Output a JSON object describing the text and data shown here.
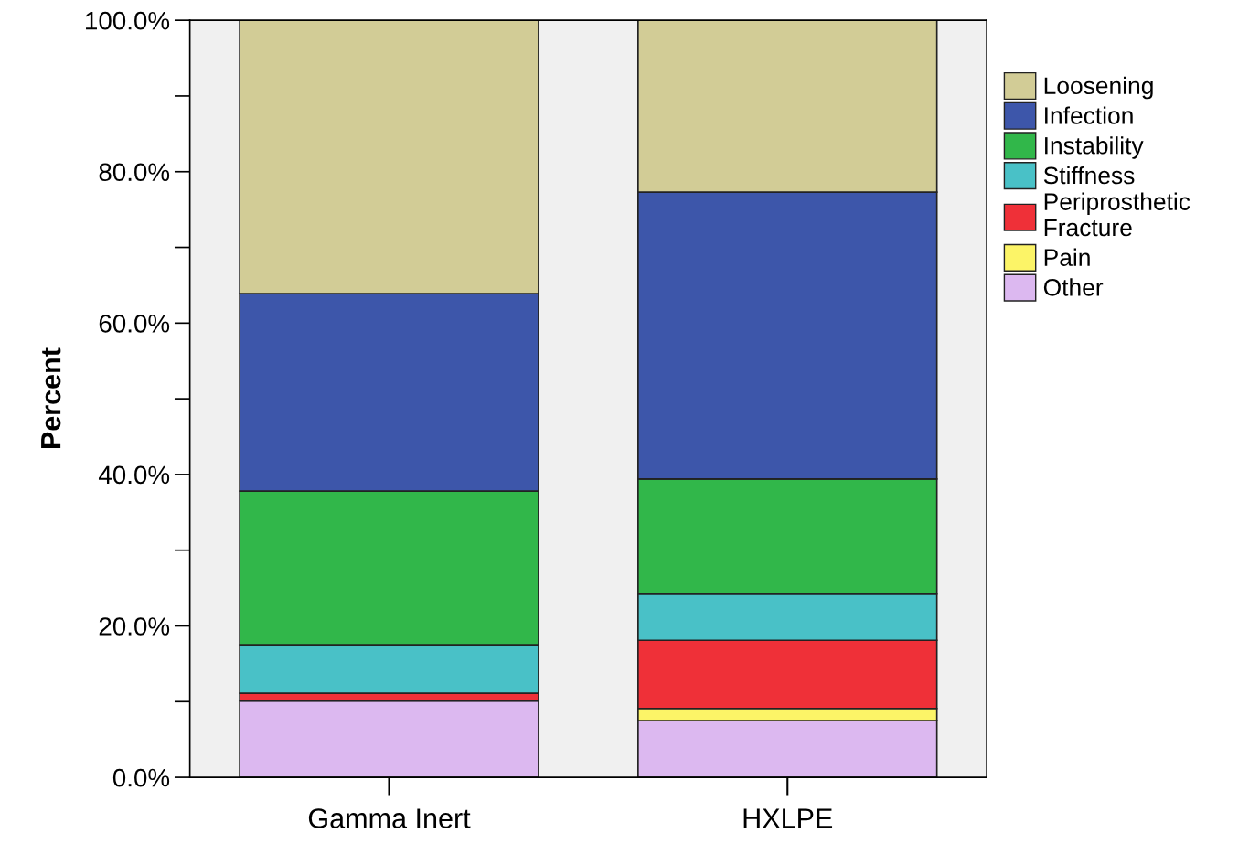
{
  "chart_data": {
    "type": "bar",
    "stacked": true,
    "ylabel": "Percent",
    "categories": [
      "Gamma Inert",
      "HXLPE"
    ],
    "series": [
      {
        "name": "Other",
        "color": "#dcb8f0",
        "values": [
          10.1,
          7.5
        ]
      },
      {
        "name": "Pain",
        "color": "#fcf467",
        "values": [
          0,
          1.6
        ]
      },
      {
        "name": "Periprosthetic\nFracture",
        "color": "#ef3038",
        "values": [
          1.0,
          9.0
        ]
      },
      {
        "name": "Stiffness",
        "color": "#49c1c7",
        "values": [
          6.4,
          6.1
        ]
      },
      {
        "name": "Instability",
        "color": "#31b74a",
        "values": [
          20.3,
          15.2
        ]
      },
      {
        "name": "Infection",
        "color": "#3d56aa",
        "values": [
          26.1,
          37.9
        ]
      },
      {
        "name": "Loosening",
        "color": "#d2cc96",
        "values": [
          36.1,
          22.7
        ]
      }
    ],
    "ylim": [
      0,
      100
    ],
    "yticks": [
      {
        "value": 0,
        "label": "0.0%"
      },
      {
        "value": 20,
        "label": "20.0%"
      },
      {
        "value": 40,
        "label": "40.0%"
      },
      {
        "value": 60,
        "label": "60.0%"
      },
      {
        "value": 80,
        "label": "80.0%"
      },
      {
        "value": 100,
        "label": "100.0%"
      }
    ],
    "grid": false,
    "legend": "right"
  }
}
